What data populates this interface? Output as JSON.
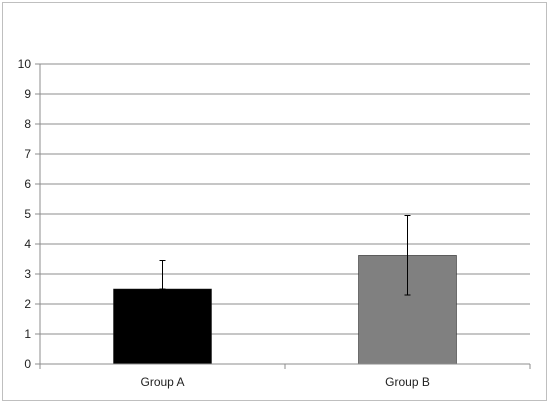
{
  "chart_data": {
    "type": "bar",
    "title": "",
    "xlabel": "",
    "ylabel": "",
    "categories": [
      "Group A",
      "Group B"
    ],
    "values": [
      2.5,
      3.62
    ],
    "error_high": [
      3.45,
      4.95
    ],
    "error_low": [
      2.5,
      2.3
    ],
    "ylim": [
      0,
      10
    ],
    "yticks": [
      "0",
      "1",
      "2",
      "3",
      "4",
      "5",
      "6",
      "7",
      "8",
      "9",
      "10"
    ],
    "grid": true,
    "legend": "none",
    "colors": [
      "#000000",
      "#808080"
    ]
  }
}
